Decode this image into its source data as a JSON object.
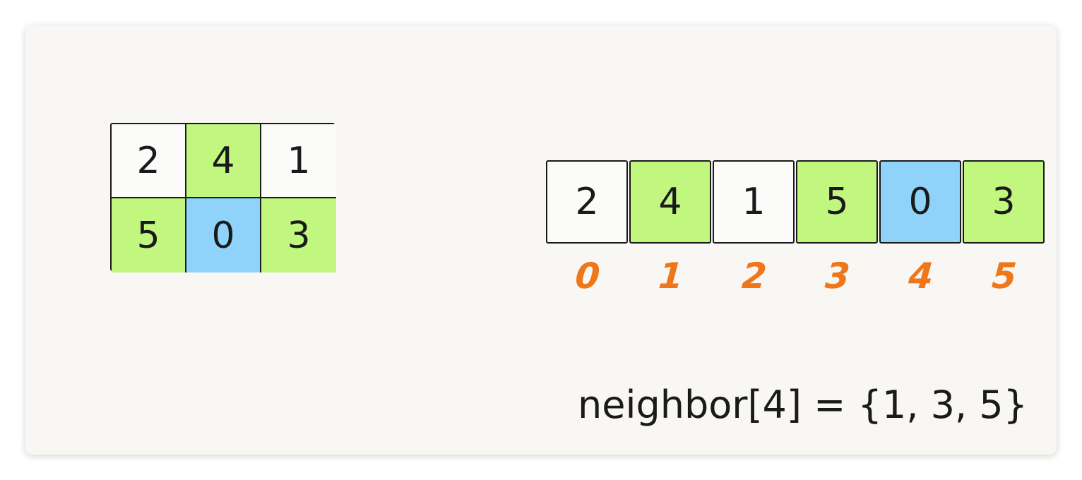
{
  "grid": {
    "rows": [
      [
        {
          "value": "2",
          "color": "white"
        },
        {
          "value": "4",
          "color": "green"
        },
        {
          "value": "1",
          "color": "white"
        }
      ],
      [
        {
          "value": "5",
          "color": "green"
        },
        {
          "value": "0",
          "color": "blue"
        },
        {
          "value": "3",
          "color": "green"
        }
      ]
    ]
  },
  "array": {
    "cells": [
      {
        "value": "2",
        "color": "white"
      },
      {
        "value": "4",
        "color": "green"
      },
      {
        "value": "1",
        "color": "white"
      },
      {
        "value": "5",
        "color": "green"
      },
      {
        "value": "0",
        "color": "blue"
      },
      {
        "value": "3",
        "color": "green"
      }
    ],
    "indices": [
      "0",
      "1",
      "2",
      "3",
      "4",
      "5"
    ]
  },
  "formula": "neighbor[4] = {1, 3, 5}",
  "colors": {
    "white": "#fbfbfa",
    "green": "#c2f77f",
    "blue": "#8fd3fb",
    "index": "#f0761a",
    "background": "#f8f7f4"
  }
}
